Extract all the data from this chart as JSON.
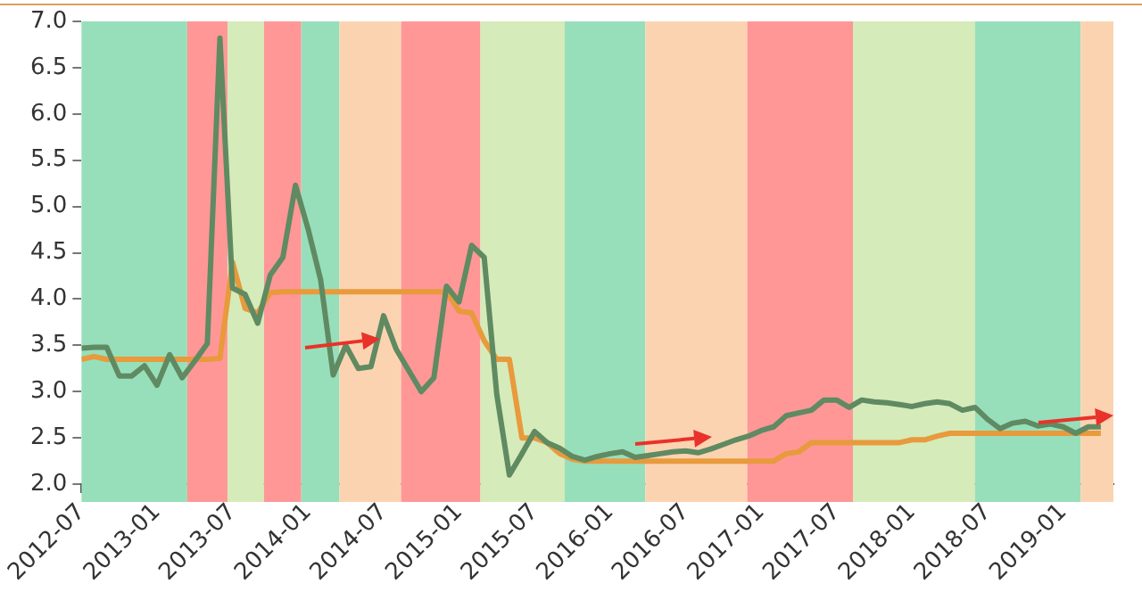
{
  "chart_data": {
    "type": "line",
    "x": [
      "2012-07",
      "2012-08",
      "2012-09",
      "2012-10",
      "2012-11",
      "2012-12",
      "2013-01",
      "2013-02",
      "2013-03",
      "2013-04",
      "2013-05",
      "2013-06",
      "2013-07",
      "2013-08",
      "2013-09",
      "2013-10",
      "2013-11",
      "2013-12",
      "2014-01",
      "2014-02",
      "2014-03",
      "2014-04",
      "2014-05",
      "2014-06",
      "2014-07",
      "2014-08",
      "2014-09",
      "2014-10",
      "2014-11",
      "2014-12",
      "2015-01",
      "2015-02",
      "2015-03",
      "2015-04",
      "2015-05",
      "2015-06",
      "2015-07",
      "2015-08",
      "2015-09",
      "2015-10",
      "2015-11",
      "2015-12",
      "2016-01",
      "2016-02",
      "2016-03",
      "2016-04",
      "2016-05",
      "2016-06",
      "2016-07",
      "2016-08",
      "2016-09",
      "2016-10",
      "2016-11",
      "2016-12",
      "2017-01",
      "2017-02",
      "2017-03",
      "2017-04",
      "2017-05",
      "2017-06",
      "2017-07",
      "2017-08",
      "2017-09",
      "2017-10",
      "2017-11",
      "2017-12",
      "2018-01",
      "2018-02",
      "2018-03",
      "2018-04",
      "2018-05",
      "2018-06",
      "2018-07",
      "2018-08",
      "2018-09",
      "2018-10",
      "2018-11",
      "2018-12",
      "2019-01",
      "2019-02",
      "2019-03",
      "2019-04"
    ],
    "series": [
      {
        "color": "#5f8a62",
        "values": [
          3.47,
          3.48,
          3.48,
          3.17,
          3.17,
          3.28,
          3.07,
          3.4,
          3.15,
          3.33,
          3.52,
          6.82,
          4.12,
          4.05,
          3.74,
          4.26,
          4.45,
          5.23,
          4.76,
          4.21,
          3.18,
          3.5,
          3.25,
          3.27,
          3.82,
          3.46,
          3.23,
          3.0,
          3.15,
          4.14,
          3.97,
          4.58,
          4.45,
          2.97,
          2.1,
          2.33,
          2.57,
          2.45,
          2.39,
          2.3,
          2.26,
          2.3,
          2.33,
          2.35,
          2.29,
          2.31,
          2.33,
          2.35,
          2.36,
          2.34,
          2.38,
          2.43,
          2.48,
          2.52,
          2.58,
          2.62,
          2.74,
          2.77,
          2.8,
          2.91,
          2.91,
          2.83,
          2.91,
          2.89,
          2.88,
          2.86,
          2.84,
          2.87,
          2.89,
          2.87,
          2.8,
          2.83,
          2.7,
          2.6,
          2.66,
          2.68,
          2.63,
          2.65,
          2.62,
          2.55,
          2.62,
          2.62
        ]
      },
      {
        "color": "#e89a3c",
        "values": [
          3.35,
          3.38,
          3.35,
          3.35,
          3.35,
          3.35,
          3.35,
          3.35,
          3.35,
          3.35,
          3.35,
          3.36,
          4.4,
          3.9,
          3.85,
          4.07,
          4.08,
          4.08,
          4.08,
          4.08,
          4.08,
          4.08,
          4.08,
          4.08,
          4.08,
          4.08,
          4.08,
          4.08,
          4.08,
          4.08,
          3.87,
          3.85,
          3.55,
          3.35,
          3.35,
          2.5,
          2.5,
          2.45,
          2.33,
          2.27,
          2.25,
          2.25,
          2.25,
          2.25,
          2.25,
          2.25,
          2.25,
          2.25,
          2.25,
          2.25,
          2.25,
          2.25,
          2.25,
          2.25,
          2.25,
          2.25,
          2.33,
          2.35,
          2.45,
          2.45,
          2.45,
          2.45,
          2.45,
          2.45,
          2.45,
          2.45,
          2.48,
          2.48,
          2.52,
          2.55,
          2.55,
          2.55,
          2.55,
          2.55,
          2.55,
          2.55,
          2.55,
          2.55,
          2.55,
          2.55,
          2.55,
          2.55
        ]
      }
    ],
    "xlim": [
      "2012-07",
      "2019-05"
    ],
    "xticks": [
      "2012-07",
      "2013-01",
      "2013-07",
      "2014-01",
      "2014-07",
      "2015-01",
      "2015-07",
      "2016-01",
      "2016-07",
      "2017-01",
      "2017-07",
      "2018-01",
      "2018-07",
      "2019-01"
    ],
    "ylim": [
      2.0,
      7.0
    ],
    "yticks": [
      {
        "value": 2,
        "label": "2.0"
      },
      {
        "value": 2.5,
        "label": "2.5"
      },
      {
        "value": 3,
        "label": "3.0"
      },
      {
        "value": 3.5,
        "label": "3.5"
      },
      {
        "value": 4,
        "label": "4.0"
      },
      {
        "value": 4.5,
        "label": "4.5"
      },
      {
        "value": 5,
        "label": "5.0"
      },
      {
        "value": 5.5,
        "label": "5.5"
      },
      {
        "value": 6,
        "label": "6.0"
      },
      {
        "value": 6.5,
        "label": "6.5"
      },
      {
        "value": 7,
        "label": "7.0"
      }
    ],
    "bands": [
      {
        "axis": "x",
        "from": "2012-07",
        "to": "2013-03-13",
        "color": "#97dfba"
      },
      {
        "axis": "x",
        "from": "2013-03-13",
        "to": "2013-06-19",
        "color": "#ff9797"
      },
      {
        "axis": "x",
        "from": "2013-06-19",
        "to": "2013-09-16",
        "color": "#d5ebba"
      },
      {
        "axis": "x",
        "from": "2013-09-16",
        "to": "2013-12-15",
        "color": "#ff9797"
      },
      {
        "axis": "x",
        "from": "2013-12-15",
        "to": "2014-03-16",
        "color": "#97dfba"
      },
      {
        "axis": "x",
        "from": "2014-03-16",
        "to": "2014-08-13",
        "color": "#fcd3b1"
      },
      {
        "axis": "x",
        "from": "2014-08-13",
        "to": "2015-02-22",
        "color": "#ff9797"
      },
      {
        "axis": "x",
        "from": "2015-02-22",
        "to": "2015-09-13",
        "color": "#d5ebba"
      },
      {
        "axis": "x",
        "from": "2015-09-13",
        "to": "2016-03-25",
        "color": "#97dfba"
      },
      {
        "axis": "x",
        "from": "2016-03-25",
        "to": "2016-11-28",
        "color": "#fcd3b1"
      },
      {
        "axis": "x",
        "from": "2016-11-28",
        "to": "2017-08-10",
        "color": "#ff9797"
      },
      {
        "axis": "x",
        "from": "2017-08-10",
        "to": "2018-06-01",
        "color": "#d5ebba"
      },
      {
        "axis": "x",
        "from": "2018-06-01",
        "to": "2019-02-13",
        "color": "#97dfba"
      },
      {
        "axis": "x",
        "from": "2019-02-13",
        "to": "2019-05",
        "color": "#fcd3b1"
      }
    ],
    "grid": false,
    "legend": false,
    "marker": "none",
    "line_style": "solid"
  }
}
